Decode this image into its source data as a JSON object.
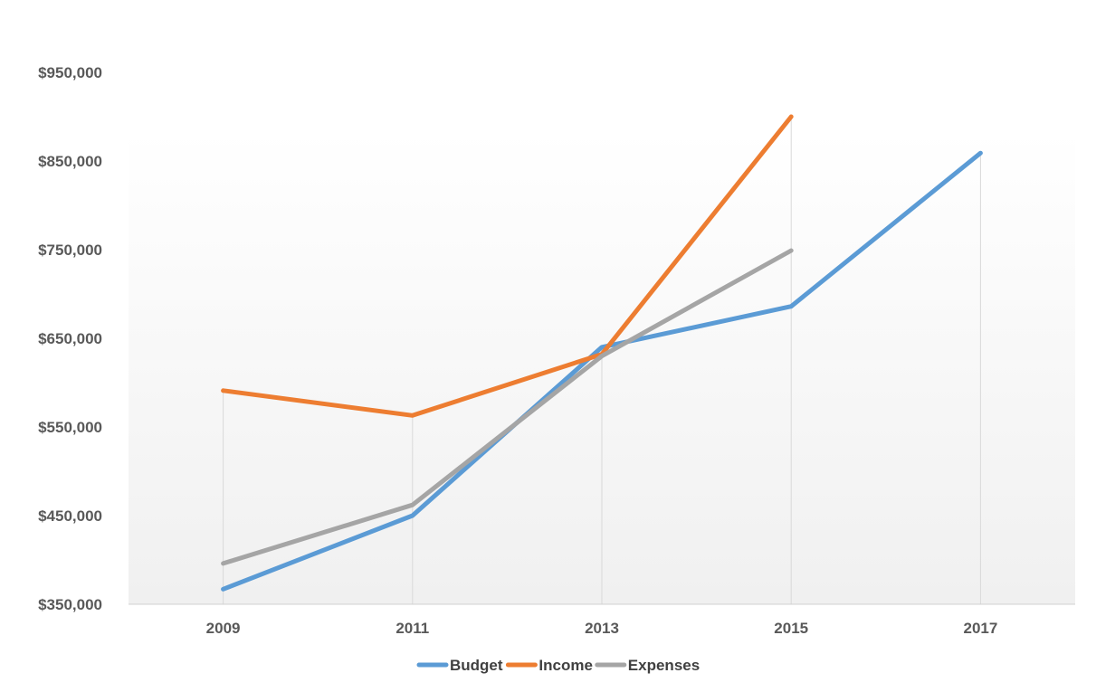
{
  "chart_data": {
    "type": "line",
    "title": "",
    "xlabel": "",
    "ylabel": "",
    "x": [
      2009,
      2011,
      2013,
      2015,
      2017
    ],
    "x_tick_labels": [
      "2009",
      "2011",
      "2013",
      "2015",
      "2017"
    ],
    "y_tick_labels": [
      "$350,000",
      "$450,000",
      "$550,000",
      "$650,000",
      "$750,000",
      "$850,000",
      "$950,000"
    ],
    "y_ticks": [
      350000,
      450000,
      550000,
      650000,
      750000,
      850000,
      950000
    ],
    "ylim": [
      350000,
      950000
    ],
    "grid": "vertical",
    "legend_position": "bottom",
    "series": [
      {
        "name": "Budget",
        "color": "#5B9BD5",
        "values": [
          367000,
          450000,
          640000,
          686000,
          859000
        ]
      },
      {
        "name": "Income",
        "color": "#ED7D31",
        "values": [
          591000,
          563000,
          632000,
          900000,
          null
        ]
      },
      {
        "name": "Expenses",
        "color": "#A5A5A5",
        "values": [
          396000,
          462000,
          630000,
          749000,
          null
        ]
      }
    ]
  }
}
